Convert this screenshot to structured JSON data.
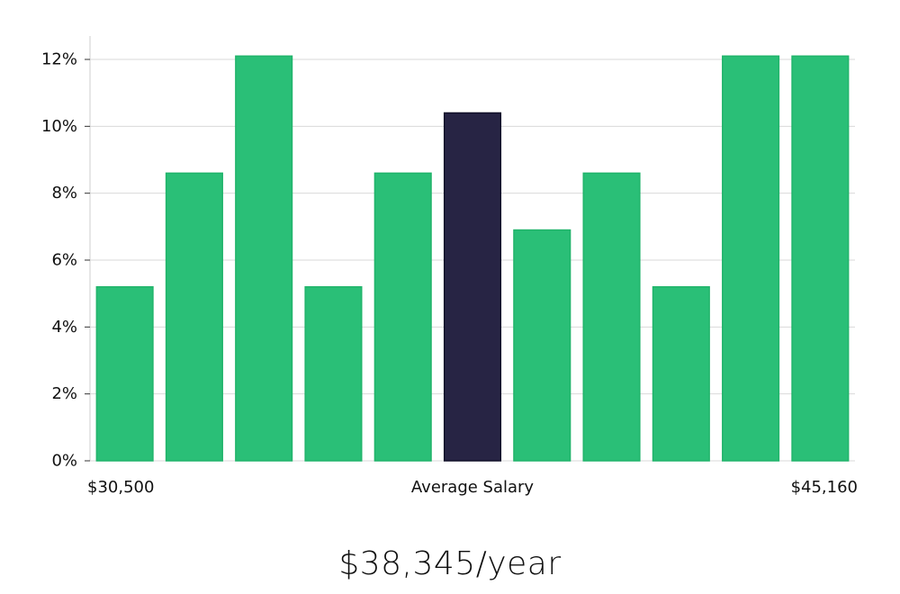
{
  "chart_data": {
    "type": "bar",
    "title": "",
    "xlabel": "Average Salary",
    "ylabel": "",
    "x_range_labels": {
      "min": "$30,500",
      "max": "$45,160"
    },
    "values": [
      5.2,
      8.6,
      12.1,
      5.2,
      8.6,
      10.4,
      6.9,
      8.6,
      5.2,
      12.1,
      12.1
    ],
    "highlight_index": 5,
    "ylim": [
      0,
      12.7
    ],
    "y_ticks": [
      0,
      2,
      4,
      6,
      8,
      10,
      12
    ],
    "y_tick_labels": [
      "0%",
      "2%",
      "4%",
      "6%",
      "8%",
      "10%",
      "12%"
    ],
    "grid": true,
    "colors": {
      "bar": "#2abf77",
      "bar_edge": "#21b46b",
      "highlight": "#272444",
      "highlight_edge": "#12112a",
      "grid": "#d9d9d9",
      "axis": "#cfcfcf"
    }
  },
  "footer": {
    "average_salary": "$38,345/year"
  }
}
